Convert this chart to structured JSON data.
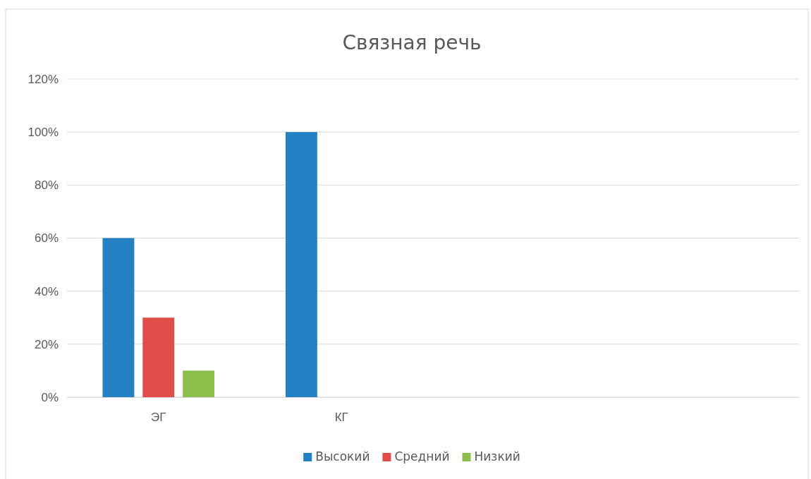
{
  "chart_data": {
    "type": "bar",
    "title": "Связная речь",
    "categories": [
      "ЭГ",
      "КГ",
      null,
      null
    ],
    "series": [
      {
        "name": "Высокий",
        "color": "#2481c3",
        "values": [
          60,
          100,
          null,
          null
        ]
      },
      {
        "name": "Средний",
        "color": "#e04d49",
        "values": [
          30,
          0,
          null,
          null
        ]
      },
      {
        "name": "Низкий",
        "color": "#8bbe4b",
        "values": [
          10,
          0,
          null,
          null
        ]
      }
    ],
    "ylim": [
      0,
      120
    ],
    "yticks": [
      {
        "value": 0,
        "label": "0%"
      },
      {
        "value": 20,
        "label": "20%"
      },
      {
        "value": 40,
        "label": "40%"
      },
      {
        "value": 60,
        "label": "60%"
      },
      {
        "value": 80,
        "label": "80%"
      },
      {
        "value": 100,
        "label": "100%"
      },
      {
        "value": 120,
        "label": "120%"
      }
    ],
    "grid": "y",
    "legend": "bottom"
  }
}
